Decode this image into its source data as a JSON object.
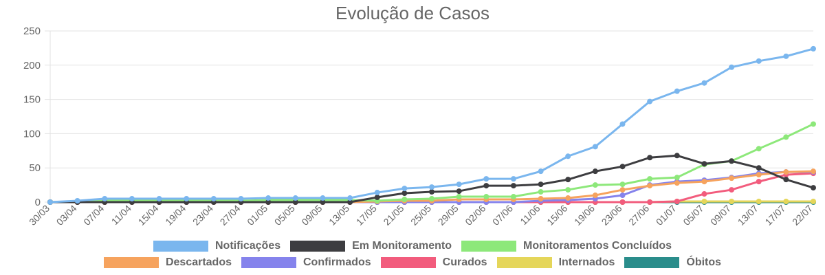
{
  "chart_data": {
    "type": "line",
    "title": "Evolução de Casos",
    "xlabel": "",
    "ylabel": "",
    "ylim": [
      0,
      250
    ],
    "yticks": [
      0,
      50,
      100,
      150,
      200,
      250
    ],
    "grid": true,
    "legend_placement": "bottom",
    "categories": [
      "30/03",
      "03/04",
      "07/04",
      "11/04",
      "15/04",
      "19/04",
      "23/04",
      "27/04",
      "01/05",
      "05/05",
      "09/05",
      "13/05",
      "17/05",
      "21/05",
      "25/05",
      "29/05",
      "02/06",
      "07/06",
      "11/06",
      "15/06",
      "19/06",
      "23/06",
      "27/06",
      "01/07",
      "05/07",
      "09/07",
      "13/07",
      "17/07",
      "22/07"
    ],
    "series": [
      {
        "name": "Notificações",
        "color": "#7ab6ee",
        "values": [
          0,
          2,
          5,
          5,
          5,
          5,
          5,
          5,
          6,
          6,
          6,
          6,
          14,
          20,
          22,
          26,
          34,
          34,
          45,
          67,
          81,
          114,
          147,
          162,
          174,
          197,
          206,
          213,
          224
        ]
      },
      {
        "name": "Em Monitoramento",
        "color": "#3d3d40",
        "values": [
          0,
          0,
          0,
          0,
          0,
          0,
          0,
          0,
          0,
          0,
          0,
          0,
          7,
          13,
          15,
          16,
          24,
          24,
          26,
          33,
          45,
          52,
          65,
          68,
          56,
          60,
          50,
          33,
          21
        ]
      },
      {
        "name": "Monitoramentos Concluídos",
        "color": "#8de87a",
        "values": [
          0,
          1,
          2,
          2,
          2,
          2,
          2,
          2,
          3,
          3,
          3,
          3,
          2,
          4,
          5,
          8,
          8,
          8,
          15,
          18,
          25,
          26,
          34,
          36,
          55,
          60,
          78,
          95,
          114
        ]
      },
      {
        "name": "Descartados",
        "color": "#f6a35e",
        "values": [
          0,
          0,
          0,
          0,
          0,
          0,
          0,
          0,
          0,
          0,
          0,
          0,
          1,
          2,
          2,
          4,
          4,
          4,
          5,
          6,
          10,
          18,
          24,
          28,
          30,
          35,
          40,
          44,
          45
        ]
      },
      {
        "name": "Confirmados",
        "color": "#8583ec",
        "values": [
          0,
          0,
          0,
          0,
          0,
          0,
          0,
          0,
          0,
          0,
          0,
          0,
          0,
          0,
          0,
          0,
          0,
          0,
          2,
          3,
          5,
          10,
          25,
          30,
          32,
          36,
          42,
          44,
          44
        ]
      },
      {
        "name": "Curados",
        "color": "#f25c7d",
        "values": [
          0,
          0,
          0,
          0,
          0,
          0,
          0,
          0,
          0,
          0,
          0,
          0,
          0,
          0,
          0,
          0,
          0,
          0,
          0,
          0,
          0,
          0,
          0,
          1,
          12,
          18,
          30,
          40,
          42
        ]
      },
      {
        "name": "Internados",
        "color": "#e5d65a",
        "values": [
          0,
          0,
          0,
          0,
          0,
          0,
          0,
          0,
          0,
          0,
          0,
          0,
          0,
          0,
          0,
          0,
          0,
          0,
          0,
          0,
          0,
          0,
          0,
          1,
          1,
          1,
          1,
          1,
          1
        ]
      },
      {
        "name": "Óbitos",
        "color": "#2a8d8b",
        "values": [
          0,
          0,
          0,
          0,
          0,
          0,
          0,
          0,
          0,
          0,
          0,
          0,
          0,
          0,
          0,
          0,
          0,
          0,
          0,
          0,
          0,
          0,
          0,
          0,
          0,
          0,
          0,
          0,
          0
        ]
      }
    ]
  }
}
